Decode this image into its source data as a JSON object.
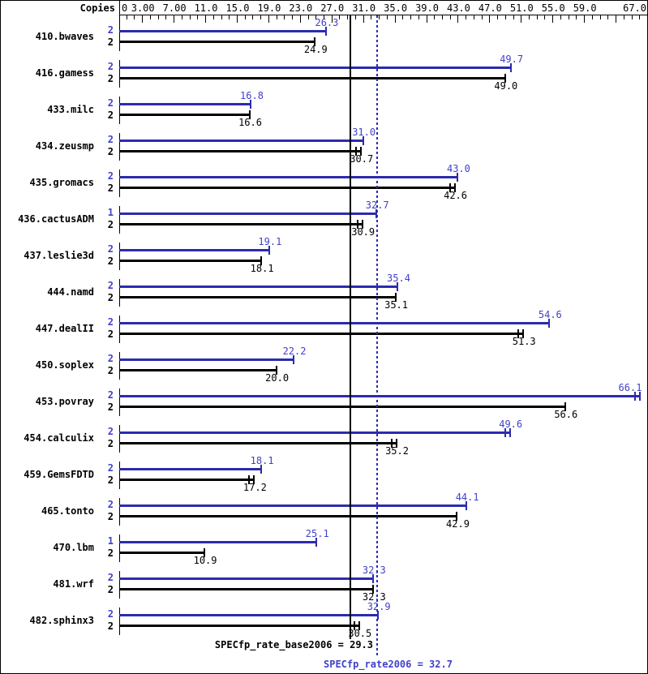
{
  "copies_header": "Copies",
  "footer": {
    "base_label": "SPECfp_rate_base2006 = 29.3",
    "peak_label": "SPECfp_rate2006 = 32.7"
  },
  "chart_data": {
    "type": "bar",
    "orientation": "horizontal",
    "title": "",
    "xlabel": "",
    "ylabel": "",
    "xlim": [
      0,
      67
    ],
    "grid": false,
    "legend_position": "none",
    "colors": {
      "peak_bar": "#2b2bae",
      "base_bar": "#000000",
      "peak_text": "#4141c8",
      "base_text": "#000000"
    },
    "x_axis": {
      "min": 0,
      "max": 67,
      "minor_tick_step": 1,
      "major_tick_values": [
        3,
        7,
        11,
        15,
        19,
        23,
        27,
        31,
        35,
        39,
        43,
        47,
        51,
        55,
        59,
        63,
        67
      ],
      "labels": [
        {
          "value": 0,
          "text": "0",
          "align": "left"
        },
        {
          "value": 3,
          "text": "3.00",
          "align": "center"
        },
        {
          "value": 7,
          "text": "7.00",
          "align": "center"
        },
        {
          "value": 11,
          "text": "11.0",
          "align": "center"
        },
        {
          "value": 15,
          "text": "15.0",
          "align": "center"
        },
        {
          "value": 19,
          "text": "19.0",
          "align": "center"
        },
        {
          "value": 23,
          "text": "23.0",
          "align": "center"
        },
        {
          "value": 27,
          "text": "27.0",
          "align": "center"
        },
        {
          "value": 31,
          "text": "31.0",
          "align": "center"
        },
        {
          "value": 35,
          "text": "35.0",
          "align": "center"
        },
        {
          "value": 39,
          "text": "39.0",
          "align": "center"
        },
        {
          "value": 43,
          "text": "43.0",
          "align": "center"
        },
        {
          "value": 47,
          "text": "47.0",
          "align": "center"
        },
        {
          "value": 51,
          "text": "51.0",
          "align": "center"
        },
        {
          "value": 55,
          "text": "55.0",
          "align": "center"
        },
        {
          "value": 59,
          "text": "59.0",
          "align": "center"
        },
        {
          "value": 67,
          "text": "67.0",
          "align": "right"
        }
      ]
    },
    "series": [
      {
        "name": "peak",
        "color": "#2b2bae"
      },
      {
        "name": "base",
        "color": "#000000"
      }
    ],
    "benchmarks": [
      {
        "name": "410.bwaves",
        "peak_copies": "2",
        "base_copies": "2",
        "peak": 26.3,
        "base": 24.9,
        "peak_ticks": 1,
        "base_ticks": 1
      },
      {
        "name": "416.gamess",
        "peak_copies": "2",
        "base_copies": "2",
        "peak": 49.7,
        "base": 49.0,
        "peak_ticks": 1,
        "base_ticks": 1
      },
      {
        "name": "433.milc",
        "peak_copies": "2",
        "base_copies": "2",
        "peak": 16.8,
        "base": 16.6,
        "peak_ticks": 1,
        "base_ticks": 1
      },
      {
        "name": "434.zeusmp",
        "peak_copies": "2",
        "base_copies": "2",
        "peak": 31.0,
        "base": 30.7,
        "peak_ticks": 1,
        "base_ticks": 2
      },
      {
        "name": "435.gromacs",
        "peak_copies": "2",
        "base_copies": "2",
        "peak": 43.0,
        "base": 42.6,
        "peak_ticks": 1,
        "base_ticks": 2
      },
      {
        "name": "436.cactusADM",
        "peak_copies": "1",
        "base_copies": "2",
        "peak": 32.7,
        "base": 30.9,
        "peak_ticks": 1,
        "base_ticks": 2
      },
      {
        "name": "437.leslie3d",
        "peak_copies": "2",
        "base_copies": "2",
        "peak": 19.1,
        "base": 18.1,
        "peak_ticks": 1,
        "base_ticks": 1
      },
      {
        "name": "444.namd",
        "peak_copies": "2",
        "base_copies": "2",
        "peak": 35.4,
        "base": 35.1,
        "peak_ticks": 1,
        "base_ticks": 1
      },
      {
        "name": "447.dealII",
        "peak_copies": "2",
        "base_copies": "2",
        "peak": 54.6,
        "base": 51.3,
        "peak_ticks": 1,
        "base_ticks": 2
      },
      {
        "name": "450.soplex",
        "peak_copies": "2",
        "base_copies": "2",
        "peak": 22.2,
        "base": 20.0,
        "peak_ticks": 1,
        "base_ticks": 1
      },
      {
        "name": "453.povray",
        "peak_copies": "2",
        "base_copies": "2",
        "peak": 66.1,
        "base": 56.6,
        "peak_ticks": 2,
        "base_ticks": 1
      },
      {
        "name": "454.calculix",
        "peak_copies": "2",
        "base_copies": "2",
        "peak": 49.6,
        "base": 35.2,
        "peak_ticks": 2,
        "base_ticks": 2
      },
      {
        "name": "459.GemsFDTD",
        "peak_copies": "2",
        "base_copies": "2",
        "peak": 18.1,
        "base": 17.2,
        "peak_ticks": 1,
        "base_ticks": 2
      },
      {
        "name": "465.tonto",
        "peak_copies": "2",
        "base_copies": "2",
        "peak": 44.1,
        "base": 42.9,
        "peak_ticks": 1,
        "base_ticks": 1
      },
      {
        "name": "470.lbm",
        "peak_copies": "1",
        "base_copies": "2",
        "peak": 25.1,
        "base": 10.9,
        "peak_ticks": 1,
        "base_ticks": 1
      },
      {
        "name": "481.wrf",
        "peak_copies": "2",
        "base_copies": "2",
        "peak": 32.3,
        "base": 32.3,
        "peak_ticks": 1,
        "base_ticks": 1
      },
      {
        "name": "482.sphinx3",
        "peak_copies": "2",
        "base_copies": "2",
        "peak": 32.9,
        "base": 30.5,
        "peak_ticks": 1,
        "base_ticks": 2
      }
    ],
    "reference_lines": [
      {
        "name": "SPECfp_rate_base2006",
        "value": 29.3,
        "display": "SPECfp_rate_base2006 = 29.3",
        "style": "solid",
        "color": "#000000"
      },
      {
        "name": "SPECfp_rate2006",
        "value": 32.7,
        "display": "SPECfp_rate2006 = 32.7",
        "style": "dotted",
        "color": "#2b2bae"
      }
    ]
  }
}
